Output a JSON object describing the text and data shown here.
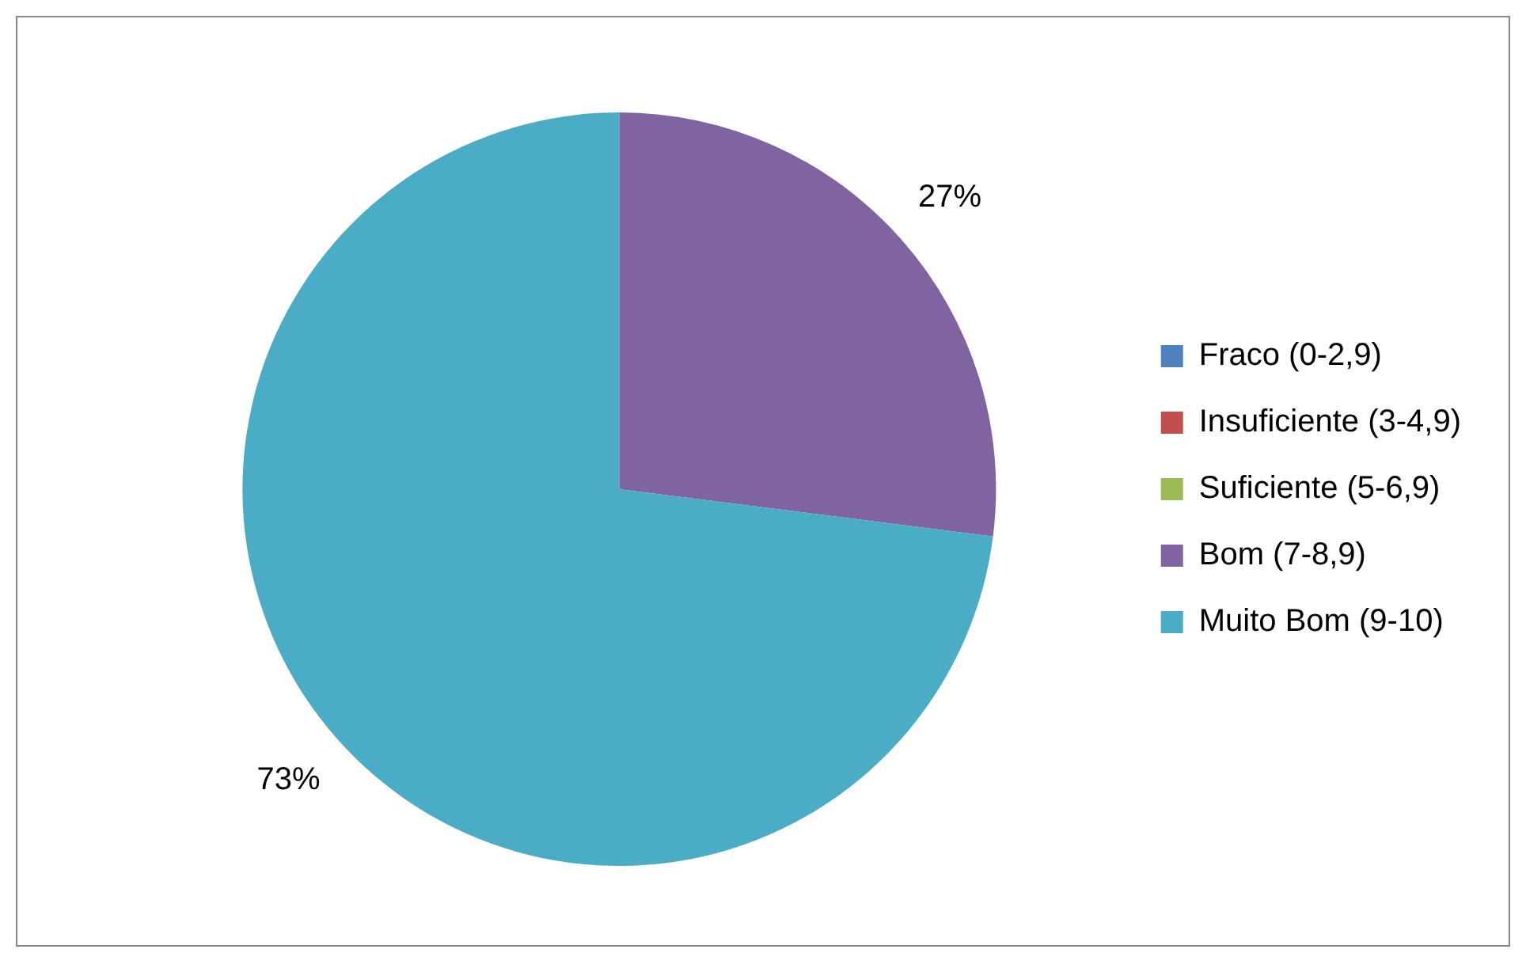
{
  "chart_data": {
    "type": "pie",
    "categories": [
      "Fraco (0-2,9)",
      "Insuficiente (3-4,9)",
      "Suficiente (5-6,9)",
      "Bom (7-8,9)",
      "Muito Bom (9-10)"
    ],
    "values": [
      0,
      0,
      0,
      27,
      73
    ],
    "colors": [
      "#4f81bd",
      "#c0504d",
      "#9bbb59",
      "#8064a2",
      "#4bacc6"
    ],
    "value_labels": [
      null,
      null,
      null,
      "27%",
      "73%"
    ],
    "legend": "right"
  }
}
